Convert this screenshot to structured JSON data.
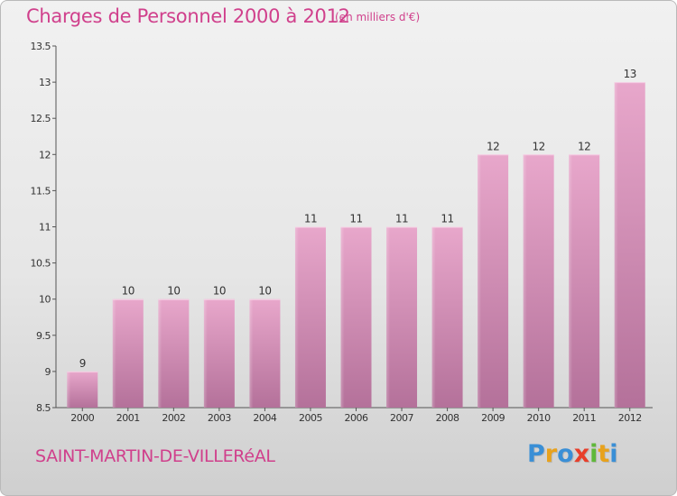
{
  "title": "Charges de Personnel 2000 à 2012",
  "subtitle": "(en milliers d'€)",
  "commune": "SAINT-MARTIN-DE-VILLERéAL",
  "logo": {
    "letters": [
      "P",
      "r",
      "o",
      "x",
      "i",
      "t",
      "i"
    ],
    "colors": [
      "#3a8fd6",
      "#e8a21c",
      "#3a8fd6",
      "#e83e2a",
      "#5fb83a",
      "#e8a21c",
      "#3a8fd6"
    ]
  },
  "colors": {
    "title": "#d0408c",
    "bar_top": "#e8a7cb",
    "bar_bottom": "#b4719a"
  },
  "chart_data": {
    "type": "bar",
    "categories": [
      "2000",
      "2001",
      "2002",
      "2003",
      "2004",
      "2005",
      "2006",
      "2007",
      "2008",
      "2009",
      "2010",
      "2011",
      "2012"
    ],
    "values": [
      9,
      10,
      10,
      10,
      10,
      11,
      11,
      11,
      11,
      12,
      12,
      12,
      13
    ],
    "value_labels": [
      "9",
      "10",
      "10",
      "10",
      "10",
      "11",
      "11",
      "11",
      "11",
      "12",
      "12",
      "12",
      "13"
    ],
    "y_ticks": [
      8.5,
      9,
      9.5,
      10,
      10.5,
      11,
      11.5,
      12,
      12.5,
      13,
      13.5
    ],
    "y_tick_labels": [
      "8.5",
      "9",
      "9.5",
      "10",
      "10.5",
      "11",
      "11.5",
      "12",
      "12.5",
      "13",
      "13.5"
    ],
    "ylim": [
      8.5,
      13.5
    ],
    "grid": false,
    "legend": "none"
  }
}
